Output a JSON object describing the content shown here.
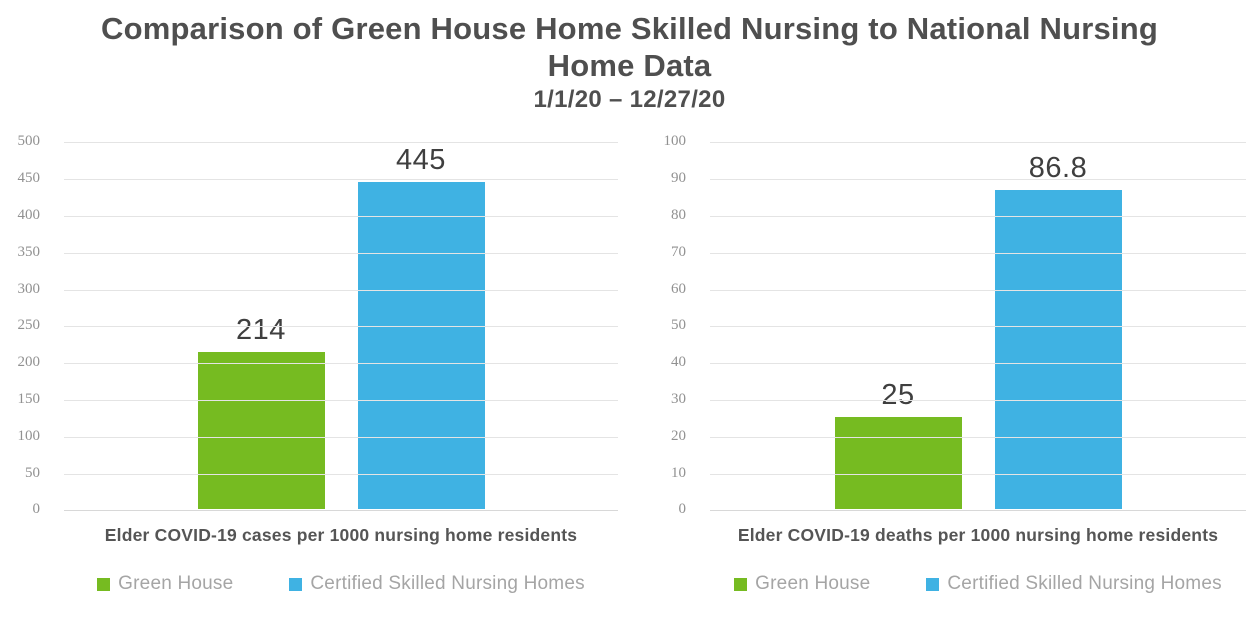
{
  "header": {
    "title": "Comparison of Green House Home Skilled Nursing to National Nursing Home Data",
    "subtitle": "1/1/20 – 12/27/20"
  },
  "palette": {
    "green": "#76BB21",
    "blue": "#3FB2E3",
    "heading_text": "#4F4F4F",
    "value_label_text": "#3F3F3F",
    "axis_tick_text": "#919191",
    "legend_text": "#A5A5A5",
    "gridline": "#E4E4E4"
  },
  "legend": {
    "items": [
      {
        "label": "Green House",
        "color": "#76BB21"
      },
      {
        "label": "Certified Skilled Nursing Homes",
        "color": "#3FB2E3"
      }
    ]
  },
  "chart_data": [
    {
      "type": "bar",
      "title": "Elder COVID-19 cases per 1000 nursing home residents",
      "categories": [
        "Green House",
        "Certified Skilled Nursing Homes"
      ],
      "values": [
        214,
        445
      ],
      "value_labels": [
        "214",
        "445"
      ],
      "colors": [
        "#76BB21",
        "#3FB2E3"
      ],
      "ylim": [
        0,
        500
      ],
      "ytick_step": 50,
      "grid": true,
      "legend_position": "bottom"
    },
    {
      "type": "bar",
      "title": "Elder COVID-19 deaths per 1000 nursing home residents",
      "categories": [
        "Green House",
        "Certified Skilled Nursing Homes"
      ],
      "values": [
        25,
        86.8
      ],
      "value_labels": [
        "25",
        "86.8"
      ],
      "colors": [
        "#76BB21",
        "#3FB2E3"
      ],
      "ylim": [
        0,
        100
      ],
      "ytick_step": 10,
      "grid": true,
      "legend_position": "bottom"
    }
  ]
}
